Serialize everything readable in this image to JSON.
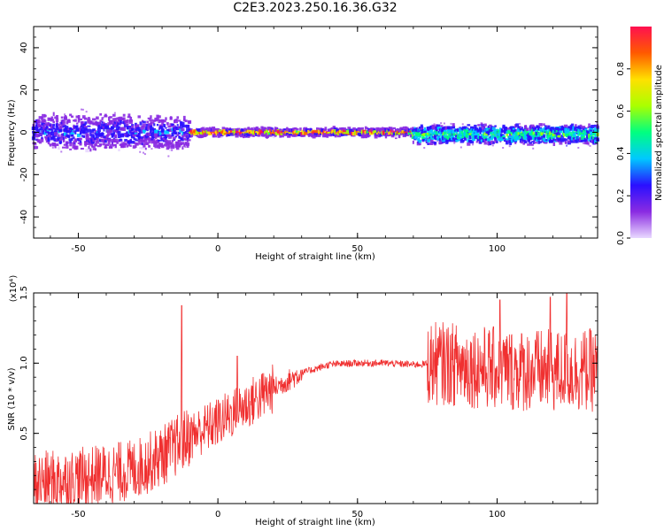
{
  "title": "C2E3.2023.250.16.36.G32",
  "chart_data": [
    {
      "type": "heatmap",
      "xlabel": "Height of straight line (km)",
      "ylabel": "Frequency (Hz)",
      "xlim": [
        -66,
        136
      ],
      "ylim": [
        -50,
        50
      ],
      "x_ticks": [
        -50,
        0,
        50,
        100
      ],
      "y_ticks": [
        -40,
        -20,
        0,
        20,
        40
      ],
      "colorbar": {
        "label": "Normalized spectral amplitude",
        "range": [
          0,
          1
        ],
        "ticks": [
          "0.0",
          "0.2",
          "0.4",
          "0.6",
          "0.8"
        ],
        "colors": [
          "#e9d8ff",
          "#8a2be2",
          "#2a10ff",
          "#00c8ff",
          "#00ff80",
          "#aaff00",
          "#ffe000",
          "#ff5a00",
          "#ff1050"
        ]
      },
      "bands": [
        {
          "x": [
            -66,
            -10
          ],
          "center": 0,
          "spread": 4.5,
          "amplitude": 0.3
        },
        {
          "x": [
            -10,
            70
          ],
          "center": 0,
          "spread": 1.2,
          "amplitude": 0.9
        },
        {
          "x": [
            70,
            136
          ],
          "center": -1,
          "spread": 2.5,
          "amplitude": 0.55
        }
      ]
    },
    {
      "type": "line",
      "xlabel": "Height of straight line (km)",
      "ylabel": "SNR (10 * v/v)",
      "multiplier_label": "(x10⁴)",
      "xlim": [
        -66,
        136
      ],
      "ylim": [
        0,
        1.5
      ],
      "x_ticks": [
        -50,
        0,
        50,
        100
      ],
      "y_ticks": [
        "0.5",
        "1.0",
        "1.5"
      ],
      "series_color": "#f03030",
      "trend": [
        {
          "x": -66,
          "y": 0.15
        },
        {
          "x": -50,
          "y": 0.18
        },
        {
          "x": -30,
          "y": 0.24
        },
        {
          "x": -20,
          "y": 0.34
        },
        {
          "x": -10,
          "y": 0.48
        },
        {
          "x": 0,
          "y": 0.58
        },
        {
          "x": 10,
          "y": 0.7
        },
        {
          "x": 20,
          "y": 0.82
        },
        {
          "x": 30,
          "y": 0.93
        },
        {
          "x": 40,
          "y": 0.99
        },
        {
          "x": 50,
          "y": 1.0
        },
        {
          "x": 60,
          "y": 1.0
        },
        {
          "x": 70,
          "y": 0.99
        },
        {
          "x": 80,
          "y": 1.0
        },
        {
          "x": 90,
          "y": 0.98
        },
        {
          "x": 100,
          "y": 0.96
        },
        {
          "x": 110,
          "y": 0.95
        },
        {
          "x": 120,
          "y": 0.94
        },
        {
          "x": 136,
          "y": 0.95
        }
      ],
      "spikes": [
        {
          "x": -13,
          "y": 1.41
        },
        {
          "x": 7,
          "y": 1.05
        },
        {
          "x": 125,
          "y": 1.5
        },
        {
          "x": 101,
          "y": 1.45
        },
        {
          "x": 119,
          "y": 1.47
        }
      ]
    }
  ]
}
